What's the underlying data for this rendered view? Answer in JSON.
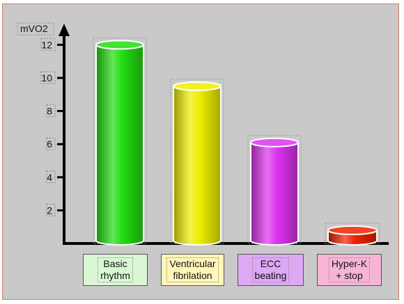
{
  "chart_data": {
    "type": "bar",
    "ylabel": "mVO2",
    "ylim": [
      0,
      13
    ],
    "yticks": [
      2,
      4,
      6,
      8,
      10,
      12
    ],
    "categories": [
      "Basic rhythm",
      "Ventricular fibrilation",
      "ECC beating",
      "Hyper-K + stop"
    ],
    "label_lines": [
      [
        "Basic",
        "rhythm"
      ],
      [
        "Ventricular",
        "fibrilation"
      ],
      [
        "ECC",
        "beating"
      ],
      [
        "Hyper-K",
        "+ stop"
      ]
    ],
    "values": [
      12.0,
      9.5,
      6.1,
      0.8
    ],
    "bar_colors": [
      "#22dd11",
      "#eeee00",
      "#dd33ee",
      "#ee2200"
    ],
    "label_fills": [
      "#d9f7d4",
      "#fff6b8",
      "#dda8f4",
      "#f7b4d6"
    ],
    "grid": false,
    "legend": "none"
  }
}
